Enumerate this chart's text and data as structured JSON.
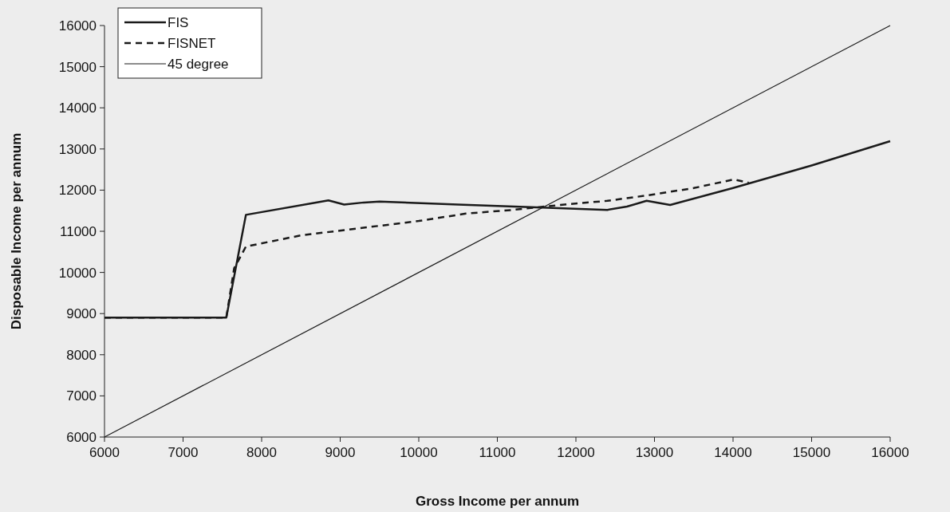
{
  "chart_data": {
    "type": "line",
    "xlabel": "Gross Income per annum",
    "ylabel": "Disposable Income per annum",
    "xlim": [
      6000,
      16000
    ],
    "xticks": [
      6000,
      7000,
      8000,
      9000,
      10000,
      11000,
      12000,
      13000,
      14000,
      15000,
      16000
    ],
    "ylim": [
      6000,
      16000
    ],
    "yticks": [
      6000,
      7000,
      8000,
      9000,
      10000,
      11000,
      12000,
      13000,
      14000,
      15000,
      16000
    ],
    "grid": false,
    "legend": "top left",
    "marker": "none",
    "series": [
      {
        "name": "FIS",
        "color": "#1a1a1a",
        "line_style": "solid",
        "x": [
          6000,
          7550,
          7800,
          8850,
          9050,
          9300,
          9500,
          10500,
          11500,
          12400,
          12650,
          12900,
          13200,
          14000,
          15000,
          16000
        ],
        "values": [
          8900,
          8900,
          11400,
          11750,
          11650,
          11700,
          11720,
          11650,
          11580,
          11520,
          11600,
          11740,
          11640,
          12050,
          12600,
          13190
        ]
      },
      {
        "name": "FISNET",
        "color": "#1a1a1a",
        "line_style": "dashed",
        "x": [
          6000,
          7550,
          7650,
          7800,
          8500,
          9100,
          10000,
          10600,
          11200,
          11800,
          12400,
          12900,
          13500,
          14010,
          14200
        ],
        "values": [
          8900,
          8900,
          10100,
          10630,
          10900,
          11040,
          11250,
          11430,
          11520,
          11640,
          11740,
          11870,
          12050,
          12260,
          12180
        ]
      },
      {
        "name": "45 degree",
        "color": "#1a1a1a",
        "line_style": "solid",
        "x": [
          6000,
          16000
        ],
        "values": [
          6000,
          16000
        ]
      }
    ]
  }
}
